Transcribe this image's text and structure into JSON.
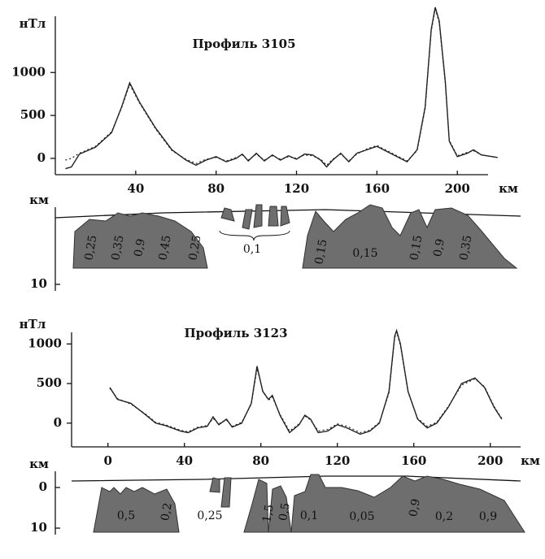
{
  "chart_data": [
    {
      "type": "line",
      "title": "Профиль 3105",
      "ylabel": "нТл",
      "xlabel": "км",
      "xlim": [
        0,
        225
      ],
      "ylim": [
        -190,
        1750
      ],
      "xticks": [
        40,
        80,
        120,
        160,
        200
      ],
      "yticks": [
        0,
        500,
        1000
      ],
      "x": [
        5,
        8,
        12,
        20,
        28,
        33,
        37,
        42,
        50,
        58,
        65,
        70,
        75,
        80,
        85,
        90,
        93,
        96,
        100,
        104,
        108,
        112,
        116,
        120,
        124,
        128,
        132,
        135,
        138,
        142,
        146,
        150,
        155,
        160,
        165,
        170,
        175,
        180,
        184,
        187,
        189,
        191,
        194,
        196,
        200,
        205,
        208,
        212,
        220
      ],
      "series": [
        {
          "color": "#222222",
          "style": "solid",
          "values": [
            -120,
            -100,
            50,
            130,
            300,
            600,
            880,
            650,
            350,
            100,
            -20,
            -80,
            -20,
            20,
            -40,
            0,
            50,
            -30,
            60,
            -30,
            40,
            -20,
            30,
            -10,
            50,
            40,
            -20,
            -100,
            -20,
            60,
            -40,
            60,
            100,
            140,
            80,
            20,
            -40,
            100,
            600,
            1500,
            1760,
            1600,
            900,
            200,
            20,
            60,
            100,
            40,
            10
          ]
        },
        {
          "color": "#222222",
          "style": "dashed",
          "values": [
            -20,
            0,
            60,
            140,
            310,
            590,
            860,
            640,
            340,
            90,
            -10,
            -60,
            -10,
            10,
            -30,
            10,
            40,
            -20,
            50,
            -20,
            30,
            -10,
            20,
            0,
            40,
            30,
            -10,
            -80,
            -10,
            50,
            -30,
            50,
            110,
            150,
            90,
            30,
            -30,
            90,
            580,
            1480,
            1740,
            1580,
            880,
            210,
            30,
            70,
            90,
            40,
            10
          ]
        }
      ],
      "section": {
        "depth_label": "км",
        "depth_ticks": [
          10
        ],
        "body_labels": [
          "0,25",
          "0,35",
          "0,9",
          "0,45",
          "0,25",
          "0,1",
          "0,15",
          "0,15",
          "0,15",
          "0,9",
          "0,35"
        ]
      }
    },
    {
      "type": "line",
      "title": "Профиль 3123",
      "ylabel": "нТл",
      "xlabel": "км",
      "xlim": [
        -19,
        215
      ],
      "ylim": [
        -300,
        1250
      ],
      "xticks": [
        0,
        40,
        80,
        120,
        160,
        200
      ],
      "yticks": [
        0,
        500,
        1000
      ],
      "x": [
        1,
        5,
        12,
        20,
        25,
        30,
        38,
        42,
        47,
        52,
        55,
        58,
        62,
        65,
        70,
        75,
        78,
        81,
        84,
        86,
        90,
        95,
        100,
        103,
        106,
        110,
        115,
        120,
        125,
        132,
        137,
        142,
        147,
        150,
        151,
        153,
        157,
        162,
        167,
        172,
        178,
        185,
        192,
        197,
        202,
        206
      ],
      "series": [
        {
          "color": "#222222",
          "style": "solid",
          "values": [
            450,
            300,
            250,
            100,
            0,
            -30,
            -100,
            -120,
            -60,
            -40,
            80,
            -20,
            50,
            -50,
            0,
            250,
            720,
            400,
            300,
            350,
            100,
            -120,
            -20,
            100,
            50,
            -120,
            -100,
            -20,
            -60,
            -140,
            -100,
            0,
            400,
            1100,
            1170,
            1000,
            400,
            50,
            -60,
            0,
            200,
            500,
            570,
            450,
            200,
            50
          ]
        },
        {
          "color": "#222222",
          "style": "dashed",
          "values": [
            440,
            310,
            240,
            110,
            10,
            -20,
            -90,
            -110,
            -50,
            -30,
            60,
            -10,
            40,
            -40,
            10,
            240,
            690,
            410,
            290,
            330,
            110,
            -100,
            -10,
            90,
            40,
            -100,
            -80,
            -10,
            -40,
            -120,
            -90,
            10,
            380,
            1080,
            1150,
            980,
            390,
            60,
            -40,
            10,
            210,
            480,
            560,
            460,
            210,
            60
          ]
        }
      ],
      "section": {
        "depth_label": "км",
        "depth_ticks": [
          0,
          10
        ],
        "body_labels": [
          "0,5",
          "0,2",
          "0,25",
          "1,5",
          "0,5",
          "0,1",
          "0,05",
          "0,9",
          "0,2",
          "0,9"
        ]
      }
    }
  ]
}
